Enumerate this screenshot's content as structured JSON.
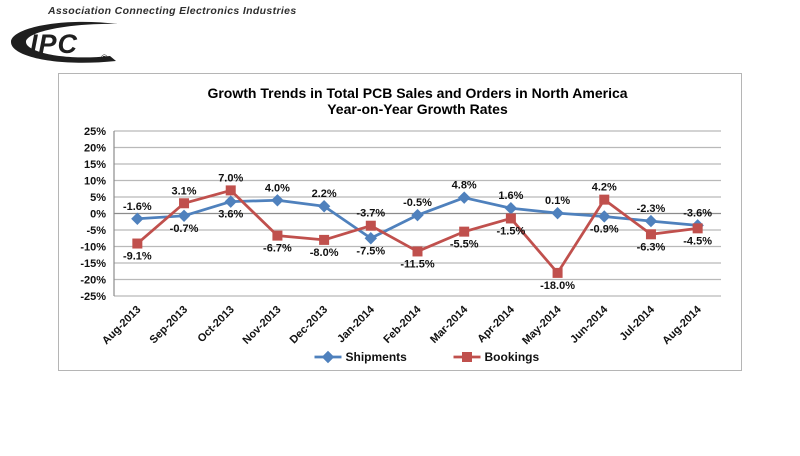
{
  "header": {
    "tagline": "Association Connecting Electronics Industries",
    "logo_text": "IPC",
    "registered_mark": "®"
  },
  "chart_data": {
    "type": "line",
    "title": "Growth Trends in Total PCB Sales and Orders in North America",
    "subtitle": "Year-on-Year Growth Rates",
    "categories": [
      "Aug-2013",
      "Sep-2013",
      "Oct-2013",
      "Nov-2013",
      "Dec-2013",
      "Jan-2014",
      "Feb-2014",
      "Mar-2014",
      "Apr-2014",
      "May-2014",
      "Jun-2014",
      "Jul-2014",
      "Aug-2014"
    ],
    "series": [
      {
        "name": "Shipments",
        "color": "#4F81BD",
        "marker": "diamond",
        "values": [
          -1.6,
          -0.7,
          3.6,
          4.0,
          2.2,
          -7.5,
          -0.5,
          4.8,
          1.6,
          0.1,
          -0.9,
          -2.3,
          -3.6
        ]
      },
      {
        "name": "Bookings",
        "color": "#C0504D",
        "marker": "square",
        "values": [
          -9.1,
          3.1,
          7.0,
          -6.7,
          -8.0,
          -3.7,
          -11.5,
          -5.5,
          -1.5,
          -18.0,
          4.2,
          -6.3,
          -4.5
        ]
      }
    ],
    "ylim": [
      -25,
      25
    ],
    "ytick_step": 5,
    "ytick_labels": [
      "25%",
      "20%",
      "15%",
      "10%",
      "5%",
      "0%",
      "-5%",
      "-10%",
      "-15%",
      "-20%",
      "-25%"
    ],
    "value_suffix": "%",
    "grid": true,
    "data_labels": true,
    "legend_position": "bottom",
    "colors": {
      "gridline": "#b9b9b9",
      "zero_line": "#8c8c8c",
      "axis_line": "#8c8c8c",
      "label_text": "#111111"
    }
  }
}
